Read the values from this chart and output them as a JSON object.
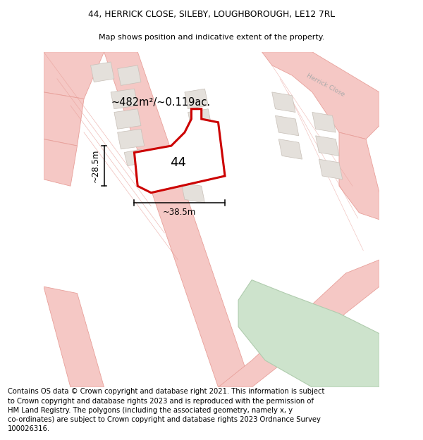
{
  "title_line1": "44, HERRICK CLOSE, SILEBY, LOUGHBOROUGH, LE12 7RL",
  "title_line2": "Map shows position and indicative extent of the property.",
  "footer_text": "Contains OS data © Crown copyright and database right 2021. This information is subject to Crown copyright and database rights 2023 and is reproduced with the permission of HM Land Registry. The polygons (including the associated geometry, namely x, y co-ordinates) are subject to Crown copyright and database rights 2023 Ordnance Survey 100026316.",
  "area_label": "~482m²/~0.119ac.",
  "number_label": "44",
  "width_label": "~38.5m",
  "height_label": "~28.5m",
  "road_label": "Herrick Close",
  "bg_color": "#ffffff",
  "map_bg": "#f9f6f4",
  "road_color": "#f5c8c5",
  "road_outline": "#e8a09a",
  "building_fill": "#e4e0db",
  "building_outline": "#c8c0b8",
  "green_fill": "#cde3cc",
  "green_outline": "#b0ccae",
  "plot_fill": "#ffffff",
  "plot_outline": "#cc0000",
  "plot_lw": 2.2
}
